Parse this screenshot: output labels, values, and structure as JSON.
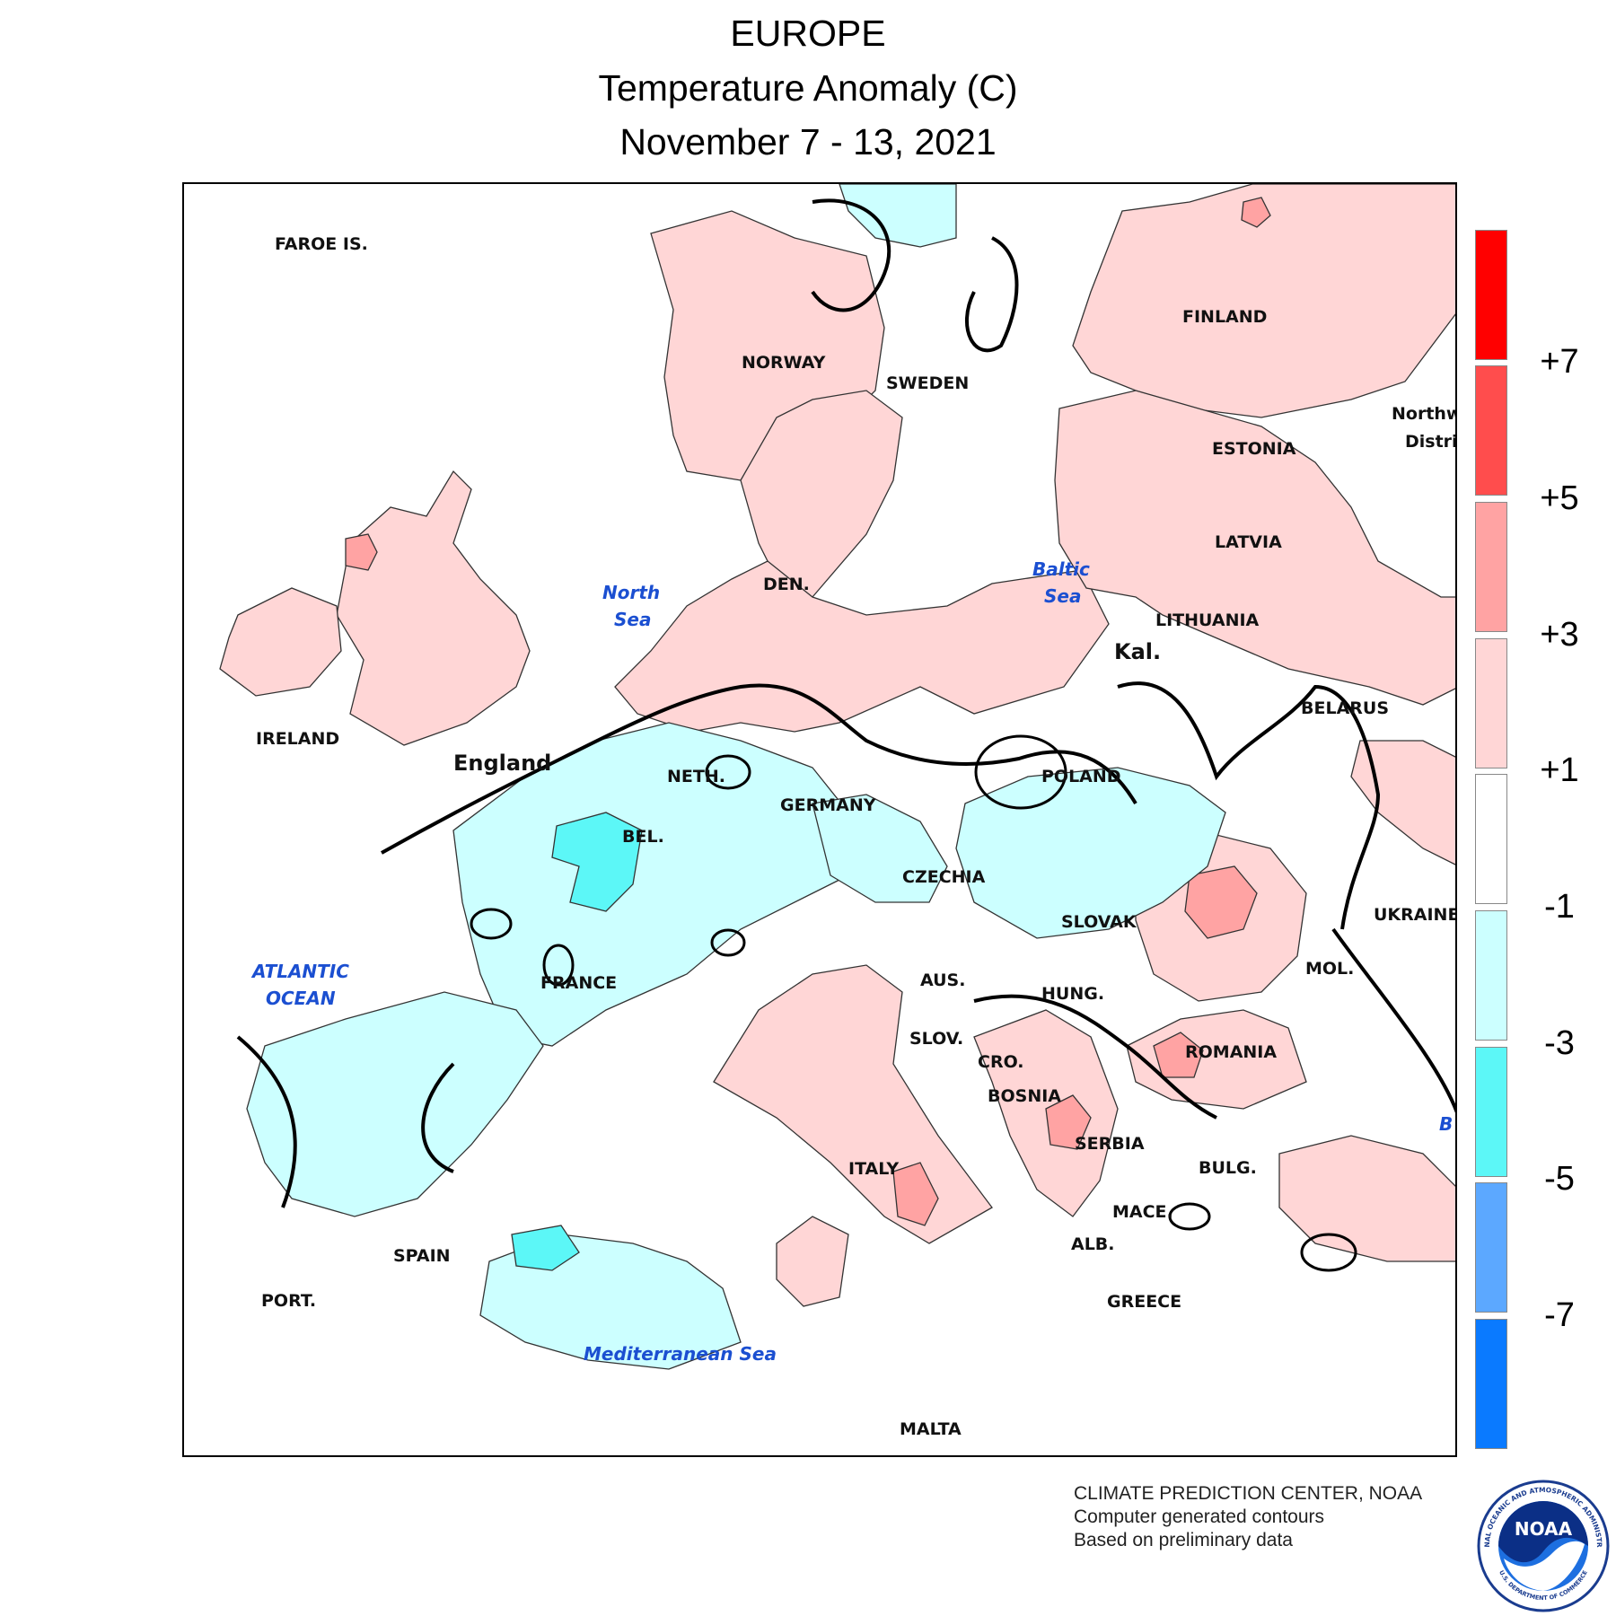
{
  "header": {
    "region": "EUROPE",
    "variable": "Temperature Anomaly (C)",
    "period": "November 7 - 13, 2021"
  },
  "legend": {
    "units": "C",
    "labels": [
      "+7",
      "+5",
      "+3",
      "+1",
      "-1",
      "-3",
      "-5",
      "-7"
    ],
    "bins": [
      {
        "range": "> +7",
        "color": "#ff0000"
      },
      {
        "range": "+5 to +7",
        "color": "#ff4d4d"
      },
      {
        "range": "+3 to +5",
        "color": "#ffa3a3"
      },
      {
        "range": "+1 to +3",
        "color": "#ffd6d6"
      },
      {
        "range": "-1 to +1",
        "color": "#ffffff"
      },
      {
        "range": "-3 to -1",
        "color": "#ccffff"
      },
      {
        "range": "-5 to -3",
        "color": "#5cf7f7"
      },
      {
        "range": "-7 to -5",
        "color": "#5ca8ff"
      },
      {
        "range": "< -7",
        "color": "#0a7aff"
      }
    ]
  },
  "map": {
    "labels": {
      "faroe": "FAROE IS.",
      "norway": "NORWAY",
      "sweden": "SWEDEN",
      "finland": "FINLAND",
      "estonia": "ESTONIA",
      "latvia": "LATVIA",
      "lithuania": "LITHUANIA",
      "kal": "Kal.",
      "belarus": "BELARUS",
      "northwest1": "Northw",
      "northwest2": "Distri",
      "ireland": "IRELAND",
      "england": "England",
      "den": "DEN.",
      "neth": "NETH.",
      "germany": "GERMANY",
      "bel": "BEL.",
      "poland": "POLAND",
      "czechia": "CZECHIA",
      "ukraine": "UKRAINE",
      "slovak": "SLOVAK",
      "aus": "AUS.",
      "mol": "MOL.",
      "hung": "HUNG.",
      "france": "FRANCE",
      "slov": "SLOV.",
      "cro": "CRO.",
      "romania": "ROMANIA",
      "bosnia": "BOSNIA",
      "serbia": "SERBIA",
      "bulg": "BULG.",
      "italy": "ITALY",
      "mace": "MACE.",
      "alb": "ALB.",
      "spain": "SPAIN",
      "port": "PORT.",
      "greece": "GREECE",
      "malta": "MALTA",
      "north_sea_1": "North",
      "north_sea_2": "Sea",
      "baltic_1": "Baltic",
      "baltic_2": "Sea",
      "atlantic_1": "ATLANTIC",
      "atlantic_2": "OCEAN",
      "med": "Mediterranean Sea",
      "black_sea_partial": "B"
    }
  },
  "credits": {
    "line1": "CLIMATE PREDICTION CENTER, NOAA",
    "line2": "Computer generated contours",
    "line3": "Based on preliminary data"
  },
  "logo": {
    "text": "NOAA",
    "ring_top": "NATIONAL OCEANIC AND ATMOSPHERIC ADMINISTRATION",
    "ring_bottom": "U.S. DEPARTMENT OF COMMERCE"
  }
}
